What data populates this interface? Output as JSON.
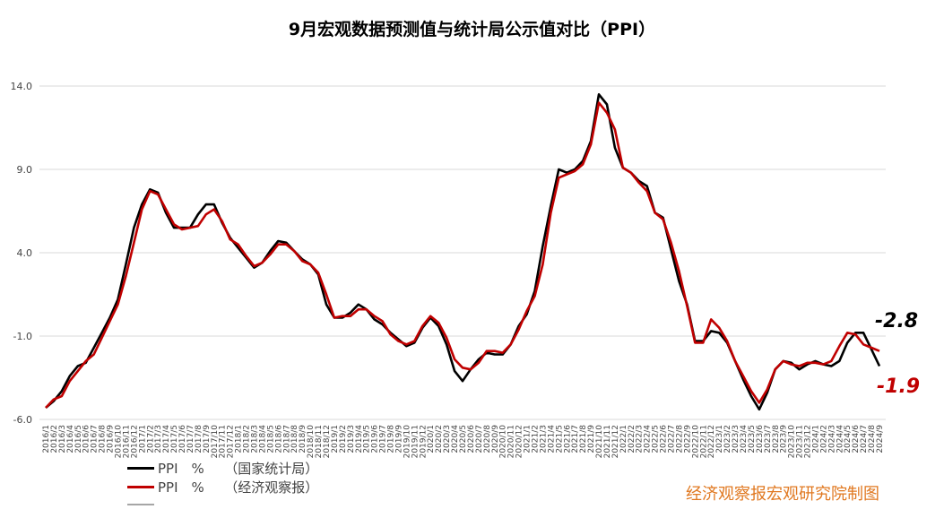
{
  "chart_data": {
    "type": "line",
    "title": "9月宏观数据预测值与统计局公示值对比（PPI）",
    "ylim": [
      -6,
      14
    ],
    "yticks": [
      -6,
      -1,
      4,
      9,
      14
    ],
    "ytick_labels": [
      "-6.0",
      "-1.0",
      "4.0",
      "9.0",
      "14.0"
    ],
    "grid": "horizontal",
    "legend_position": "bottom-left",
    "categories": [
      "2016/1",
      "2016/2",
      "2016/3",
      "2016/4",
      "2016/5",
      "2016/6",
      "2016/7",
      "2016/8",
      "2016/9",
      "2016/10",
      "2016/11",
      "2016/12",
      "2017/1",
      "2017/2",
      "2017/3",
      "2017/4",
      "2017/5",
      "2017/6",
      "2017/7",
      "2017/8",
      "2017/9",
      "2017/10",
      "2017/11",
      "2017/12",
      "2018/1",
      "2018/2",
      "2018/3",
      "2018/4",
      "2018/5",
      "2018/6",
      "2018/7",
      "2018/8",
      "2018/9",
      "2018/10",
      "2018/11",
      "2018/12",
      "2019/1",
      "2019/2",
      "2019/3",
      "2019/4",
      "2019/5",
      "2019/6",
      "2019/7",
      "2019/8",
      "2019/9",
      "2019/10",
      "2019/11",
      "2019/12",
      "2020/1",
      "2020/2",
      "2020/3",
      "2020/4",
      "2020/5",
      "2020/6",
      "2020/7",
      "2020/8",
      "2020/9",
      "2020/10",
      "2020/11",
      "2020/12",
      "2021/1",
      "2021/2",
      "2021/3",
      "2021/4",
      "2021/5",
      "2021/6",
      "2021/7",
      "2021/8",
      "2021/9",
      "2021/10",
      "2021/11",
      "2021/12",
      "2022/1",
      "2022/2",
      "2022/3",
      "2022/4",
      "2022/5",
      "2022/6",
      "2022/7",
      "2022/8",
      "2022/9",
      "2022/10",
      "2022/11",
      "2022/12",
      "2023/1",
      "2023/2",
      "2023/3",
      "2023/4",
      "2023/5",
      "2023/6",
      "2023/7",
      "2023/8",
      "2023/9",
      "2023/10",
      "2023/11",
      "2023/12",
      "2024/1",
      "2024/2",
      "2024/3",
      "2024/4",
      "2024/5",
      "2024/6",
      "2024/7",
      "2024/8",
      "2024/9"
    ],
    "tick_labels": [
      "2016/1",
      "2016/2",
      "2016/3",
      "2016/4",
      "2016/5",
      "2016/6",
      "2016/7",
      "2016/8",
      "2016/9",
      "2016/10",
      "2016/11",
      "2016/12",
      "2017/1",
      "2017/2",
      "2017/3",
      "2017/4",
      "2017/5",
      "2017/6",
      "2017/7",
      "2017/8",
      "2017/9",
      "2017/10",
      "2017/11",
      "2017/12",
      "2018/1",
      "2018/2",
      "2018/3",
      "2018/4",
      "2018/5",
      "2018/6",
      "2018/7",
      "2018/8",
      "2018/9",
      "2018/10",
      "2018/11",
      "2018/12",
      "2019/1",
      "2019/2",
      "2019/3",
      "2019/4",
      "2019/5",
      "2019/6",
      "2019/7",
      "2019/8",
      "2019/9",
      "2019/10",
      "2019/11",
      "2019/12",
      "2020/1",
      "2020/2",
      "2020/3",
      "2020/4",
      "2020/5",
      "2020/6",
      "2020/7",
      "2020/8",
      "2020/9",
      "2020/10",
      "2020/11",
      "2020/12",
      "2021/1",
      "2021/2",
      "2021/3",
      "2021/4",
      "2021/5",
      "2021/6",
      "2021/7",
      "2021/8",
      "2021/9",
      "2021/10",
      "2021/11",
      "2021/12",
      "2022/1",
      "2022/2",
      "2022/3",
      "2022/4",
      "2022/5",
      "2022/6",
      "2022/7",
      "2022/8",
      "2022/9",
      "2022/10",
      "2022/11",
      "2022/12",
      "2023/1",
      "2023/2",
      "2023/3",
      "2023/4",
      "2023/5",
      "2023/6",
      "2023/7",
      "2023/8",
      "2023/9",
      "2023/10",
      "2023/11",
      "2023/12",
      "2024/1",
      "2024/2",
      "2024/3",
      "2024/4",
      "2024/5",
      "2024/6",
      "2024/7",
      "2024/8",
      "2024/9"
    ],
    "series": [
      {
        "name": "PPI　%　　（国家统计局）",
        "color": "#000000",
        "values": [
          -5.3,
          -4.9,
          -4.3,
          -3.4,
          -2.8,
          -2.6,
          -1.7,
          -0.8,
          0.1,
          1.2,
          3.3,
          5.5,
          6.9,
          7.8,
          7.6,
          6.4,
          5.5,
          5.5,
          5.5,
          6.3,
          6.9,
          6.9,
          5.8,
          4.9,
          4.3,
          3.7,
          3.1,
          3.4,
          4.1,
          4.7,
          4.6,
          4.1,
          3.6,
          3.3,
          2.7,
          0.9,
          0.1,
          0.1,
          0.4,
          0.9,
          0.6,
          0.0,
          -0.3,
          -0.8,
          -1.2,
          -1.6,
          -1.4,
          -0.5,
          0.1,
          -0.4,
          -1.5,
          -3.1,
          -3.7,
          -3.0,
          -2.4,
          -2.0,
          -2.1,
          -2.1,
          -1.5,
          -0.4,
          0.3,
          1.7,
          4.4,
          6.8,
          9.0,
          8.8,
          9.0,
          9.5,
          10.7,
          13.5,
          12.9,
          10.3,
          9.1,
          8.8,
          8.3,
          8.0,
          6.4,
          6.1,
          4.2,
          2.3,
          0.9,
          -1.3,
          -1.3,
          -0.7,
          -0.8,
          -1.4,
          -2.5,
          -3.6,
          -4.6,
          -5.4,
          -4.4,
          -3.0,
          -2.5,
          -2.6,
          -3.0,
          -2.7,
          -2.5,
          -2.7,
          -2.8,
          -2.5,
          -1.4,
          -0.8,
          -0.8,
          -1.8,
          -2.8
        ]
      },
      {
        "name": "PPI　%　　（经济观察报）",
        "color": "#c00000",
        "values": [
          -5.3,
          -4.8,
          -4.6,
          -3.7,
          -3.1,
          -2.5,
          -2.1,
          -1.1,
          -0.1,
          0.9,
          2.6,
          4.6,
          6.6,
          7.7,
          7.5,
          6.6,
          5.7,
          5.4,
          5.5,
          5.6,
          6.3,
          6.6,
          5.9,
          4.8,
          4.5,
          3.8,
          3.2,
          3.4,
          3.9,
          4.5,
          4.5,
          4.1,
          3.5,
          3.3,
          2.8,
          1.5,
          0.1,
          0.2,
          0.2,
          0.6,
          0.6,
          0.2,
          -0.1,
          -0.9,
          -1.3,
          -1.5,
          -1.3,
          -0.4,
          0.2,
          -0.2,
          -1.1,
          -2.4,
          -2.9,
          -3.0,
          -2.6,
          -1.9,
          -1.9,
          -2.0,
          -1.5,
          -0.6,
          0.5,
          1.4,
          3.3,
          6.4,
          8.5,
          8.7,
          8.9,
          9.3,
          10.5,
          13.0,
          12.4,
          11.4,
          9.1,
          8.8,
          8.2,
          7.7,
          6.4,
          6.0,
          4.6,
          2.9,
          0.8,
          -1.4,
          -1.4,
          0.0,
          -0.5,
          -1.3,
          -2.5,
          -3.4,
          -4.3,
          -5.0,
          -4.2,
          -3.0,
          -2.5,
          -2.7,
          -2.8,
          -2.6,
          -2.6,
          -2.7,
          -2.5,
          -1.6,
          -0.8,
          -0.9,
          -1.5,
          -1.7,
          -1.9
        ]
      }
    ],
    "annotations": [
      {
        "text": "-2.8",
        "color": "#000000"
      },
      {
        "text": "-1.9",
        "color": "#c00000"
      }
    ]
  },
  "credit": "经济观察报宏观研究院制图"
}
